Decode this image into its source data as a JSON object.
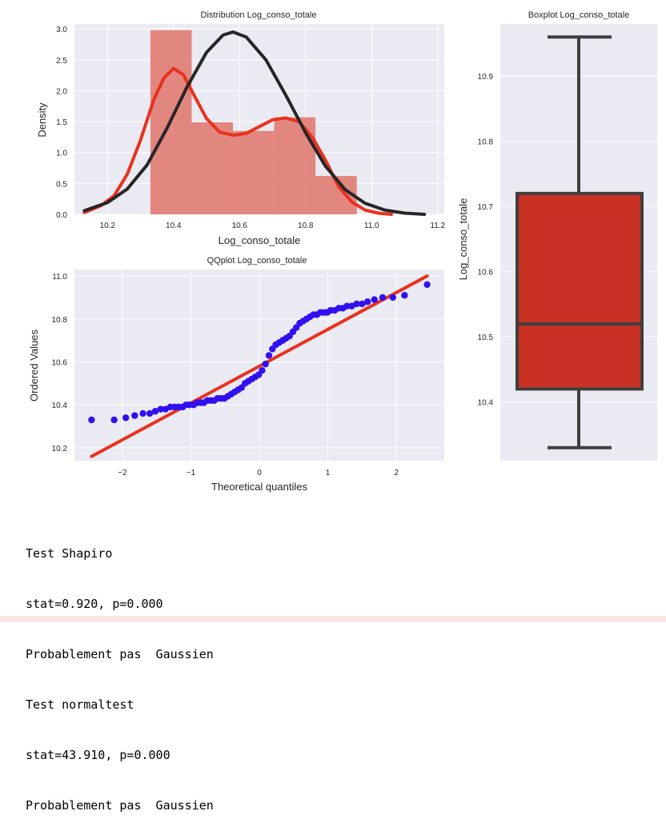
{
  "chart_data": [
    {
      "type": "histogram+kde",
      "title": "Distribution Log_conso_totale",
      "xlabel": "Log_conso_totale",
      "ylabel": "Density",
      "xlim": [
        10.1,
        11.22
      ],
      "ylim": [
        0,
        3.08
      ],
      "xticks": [
        10.2,
        10.4,
        10.6,
        10.8,
        11.0,
        11.2
      ],
      "yticks": [
        0.0,
        0.5,
        1.0,
        1.5,
        2.0,
        2.5,
        3.0
      ],
      "histogram": {
        "color": "#E0746C",
        "bins": [
          {
            "x0": 10.33,
            "x1": 10.455,
            "density": 2.98
          },
          {
            "x0": 10.455,
            "x1": 10.58,
            "density": 1.49
          },
          {
            "x0": 10.58,
            "x1": 10.705,
            "density": 1.35
          },
          {
            "x0": 10.705,
            "x1": 10.83,
            "density": 1.57
          },
          {
            "x0": 10.83,
            "x1": 10.955,
            "density": 0.62
          }
        ]
      },
      "series": [
        {
          "color": "#E8321E",
          "x": [
            10.13,
            10.18,
            10.22,
            10.26,
            10.3,
            10.34,
            10.37,
            10.4,
            10.43,
            10.46,
            10.5,
            10.54,
            10.58,
            10.62,
            10.66,
            10.7,
            10.74,
            10.78,
            10.82,
            10.86,
            10.9,
            10.94,
            10.98,
            11.02,
            11.06
          ],
          "y": [
            0.03,
            0.14,
            0.3,
            0.65,
            1.2,
            1.85,
            2.2,
            2.36,
            2.26,
            1.95,
            1.55,
            1.33,
            1.28,
            1.31,
            1.42,
            1.53,
            1.56,
            1.5,
            1.25,
            0.88,
            0.45,
            0.2,
            0.07,
            0.02,
            0.0
          ]
        },
        {
          "color": "#262626",
          "x": [
            10.13,
            10.2,
            10.26,
            10.32,
            10.38,
            10.44,
            10.5,
            10.55,
            10.58,
            10.62,
            10.68,
            10.74,
            10.8,
            10.86,
            10.92,
            10.98,
            11.04,
            11.1,
            11.16
          ],
          "y": [
            0.06,
            0.19,
            0.41,
            0.8,
            1.39,
            2.05,
            2.62,
            2.9,
            2.95,
            2.87,
            2.5,
            1.93,
            1.32,
            0.78,
            0.4,
            0.18,
            0.07,
            0.02,
            0.0
          ]
        }
      ]
    },
    {
      "type": "scatter",
      "title": "QQplot Log_conso_totale",
      "xlabel": "Theoretical quantiles",
      "ylabel": "Ordered Values",
      "xlim": [
        -2.7,
        2.7
      ],
      "ylim": [
        10.14,
        11.03
      ],
      "xticks": [
        -2,
        -1,
        0,
        1,
        2
      ],
      "yticks": [
        10.2,
        10.4,
        10.6,
        10.8,
        11.0
      ],
      "points_color": "#3010F0",
      "fit_line": {
        "color": "#E8321E",
        "x": [
          -2.45,
          2.45
        ],
        "y": [
          10.16,
          11.0
        ]
      },
      "points": {
        "x": [
          -2.45,
          -2.12,
          -1.95,
          -1.82,
          -1.7,
          -1.6,
          -1.52,
          -1.44,
          -1.37,
          -1.3,
          -1.24,
          -1.18,
          -1.12,
          -1.07,
          -1.02,
          -0.96,
          -0.91,
          -0.86,
          -0.81,
          -0.76,
          -0.71,
          -0.66,
          -0.61,
          -0.56,
          -0.51,
          -0.46,
          -0.41,
          -0.36,
          -0.31,
          -0.26,
          -0.21,
          -0.16,
          -0.11,
          -0.06,
          -0.01,
          0.04,
          0.09,
          0.14,
          0.19,
          0.24,
          0.29,
          0.34,
          0.39,
          0.44,
          0.49,
          0.54,
          0.59,
          0.64,
          0.69,
          0.74,
          0.79,
          0.84,
          0.89,
          0.94,
          0.99,
          1.04,
          1.1,
          1.16,
          1.22,
          1.28,
          1.35,
          1.42,
          1.5,
          1.58,
          1.68,
          1.8,
          1.95,
          2.12,
          2.45
        ],
        "y": [
          10.33,
          10.33,
          10.34,
          10.35,
          10.36,
          10.36,
          10.37,
          10.38,
          10.38,
          10.39,
          10.39,
          10.39,
          10.39,
          10.4,
          10.4,
          10.4,
          10.41,
          10.41,
          10.41,
          10.42,
          10.42,
          10.42,
          10.43,
          10.43,
          10.43,
          10.44,
          10.45,
          10.46,
          10.47,
          10.48,
          10.5,
          10.51,
          10.52,
          10.53,
          10.54,
          10.56,
          10.59,
          10.63,
          10.66,
          10.68,
          10.69,
          10.7,
          10.71,
          10.72,
          10.74,
          10.76,
          10.78,
          10.79,
          10.8,
          10.81,
          10.82,
          10.82,
          10.83,
          10.83,
          10.83,
          10.84,
          10.84,
          10.85,
          10.85,
          10.86,
          10.86,
          10.87,
          10.87,
          10.88,
          10.89,
          10.9,
          10.9,
          10.91,
          10.96
        ]
      }
    },
    {
      "type": "box",
      "title": "Boxplot Log_conso_totale",
      "ylabel": "Log_conso_totale",
      "ylim": [
        10.31,
        10.98
      ],
      "yticks": [
        10.4,
        10.5,
        10.6,
        10.7,
        10.8,
        10.9
      ],
      "box_color": "#C93124",
      "stats": {
        "min": 10.33,
        "q1": 10.42,
        "median": 10.52,
        "q3": 10.72,
        "max": 10.96
      }
    }
  ],
  "output": {
    "lines": [
      "Test Shapiro",
      "stat=0.920, p=0.000",
      "Probablement pas  Gaussien",
      "Test normaltest",
      "stat=43.910, p=0.000",
      "Probablement pas  Gaussien"
    ]
  }
}
